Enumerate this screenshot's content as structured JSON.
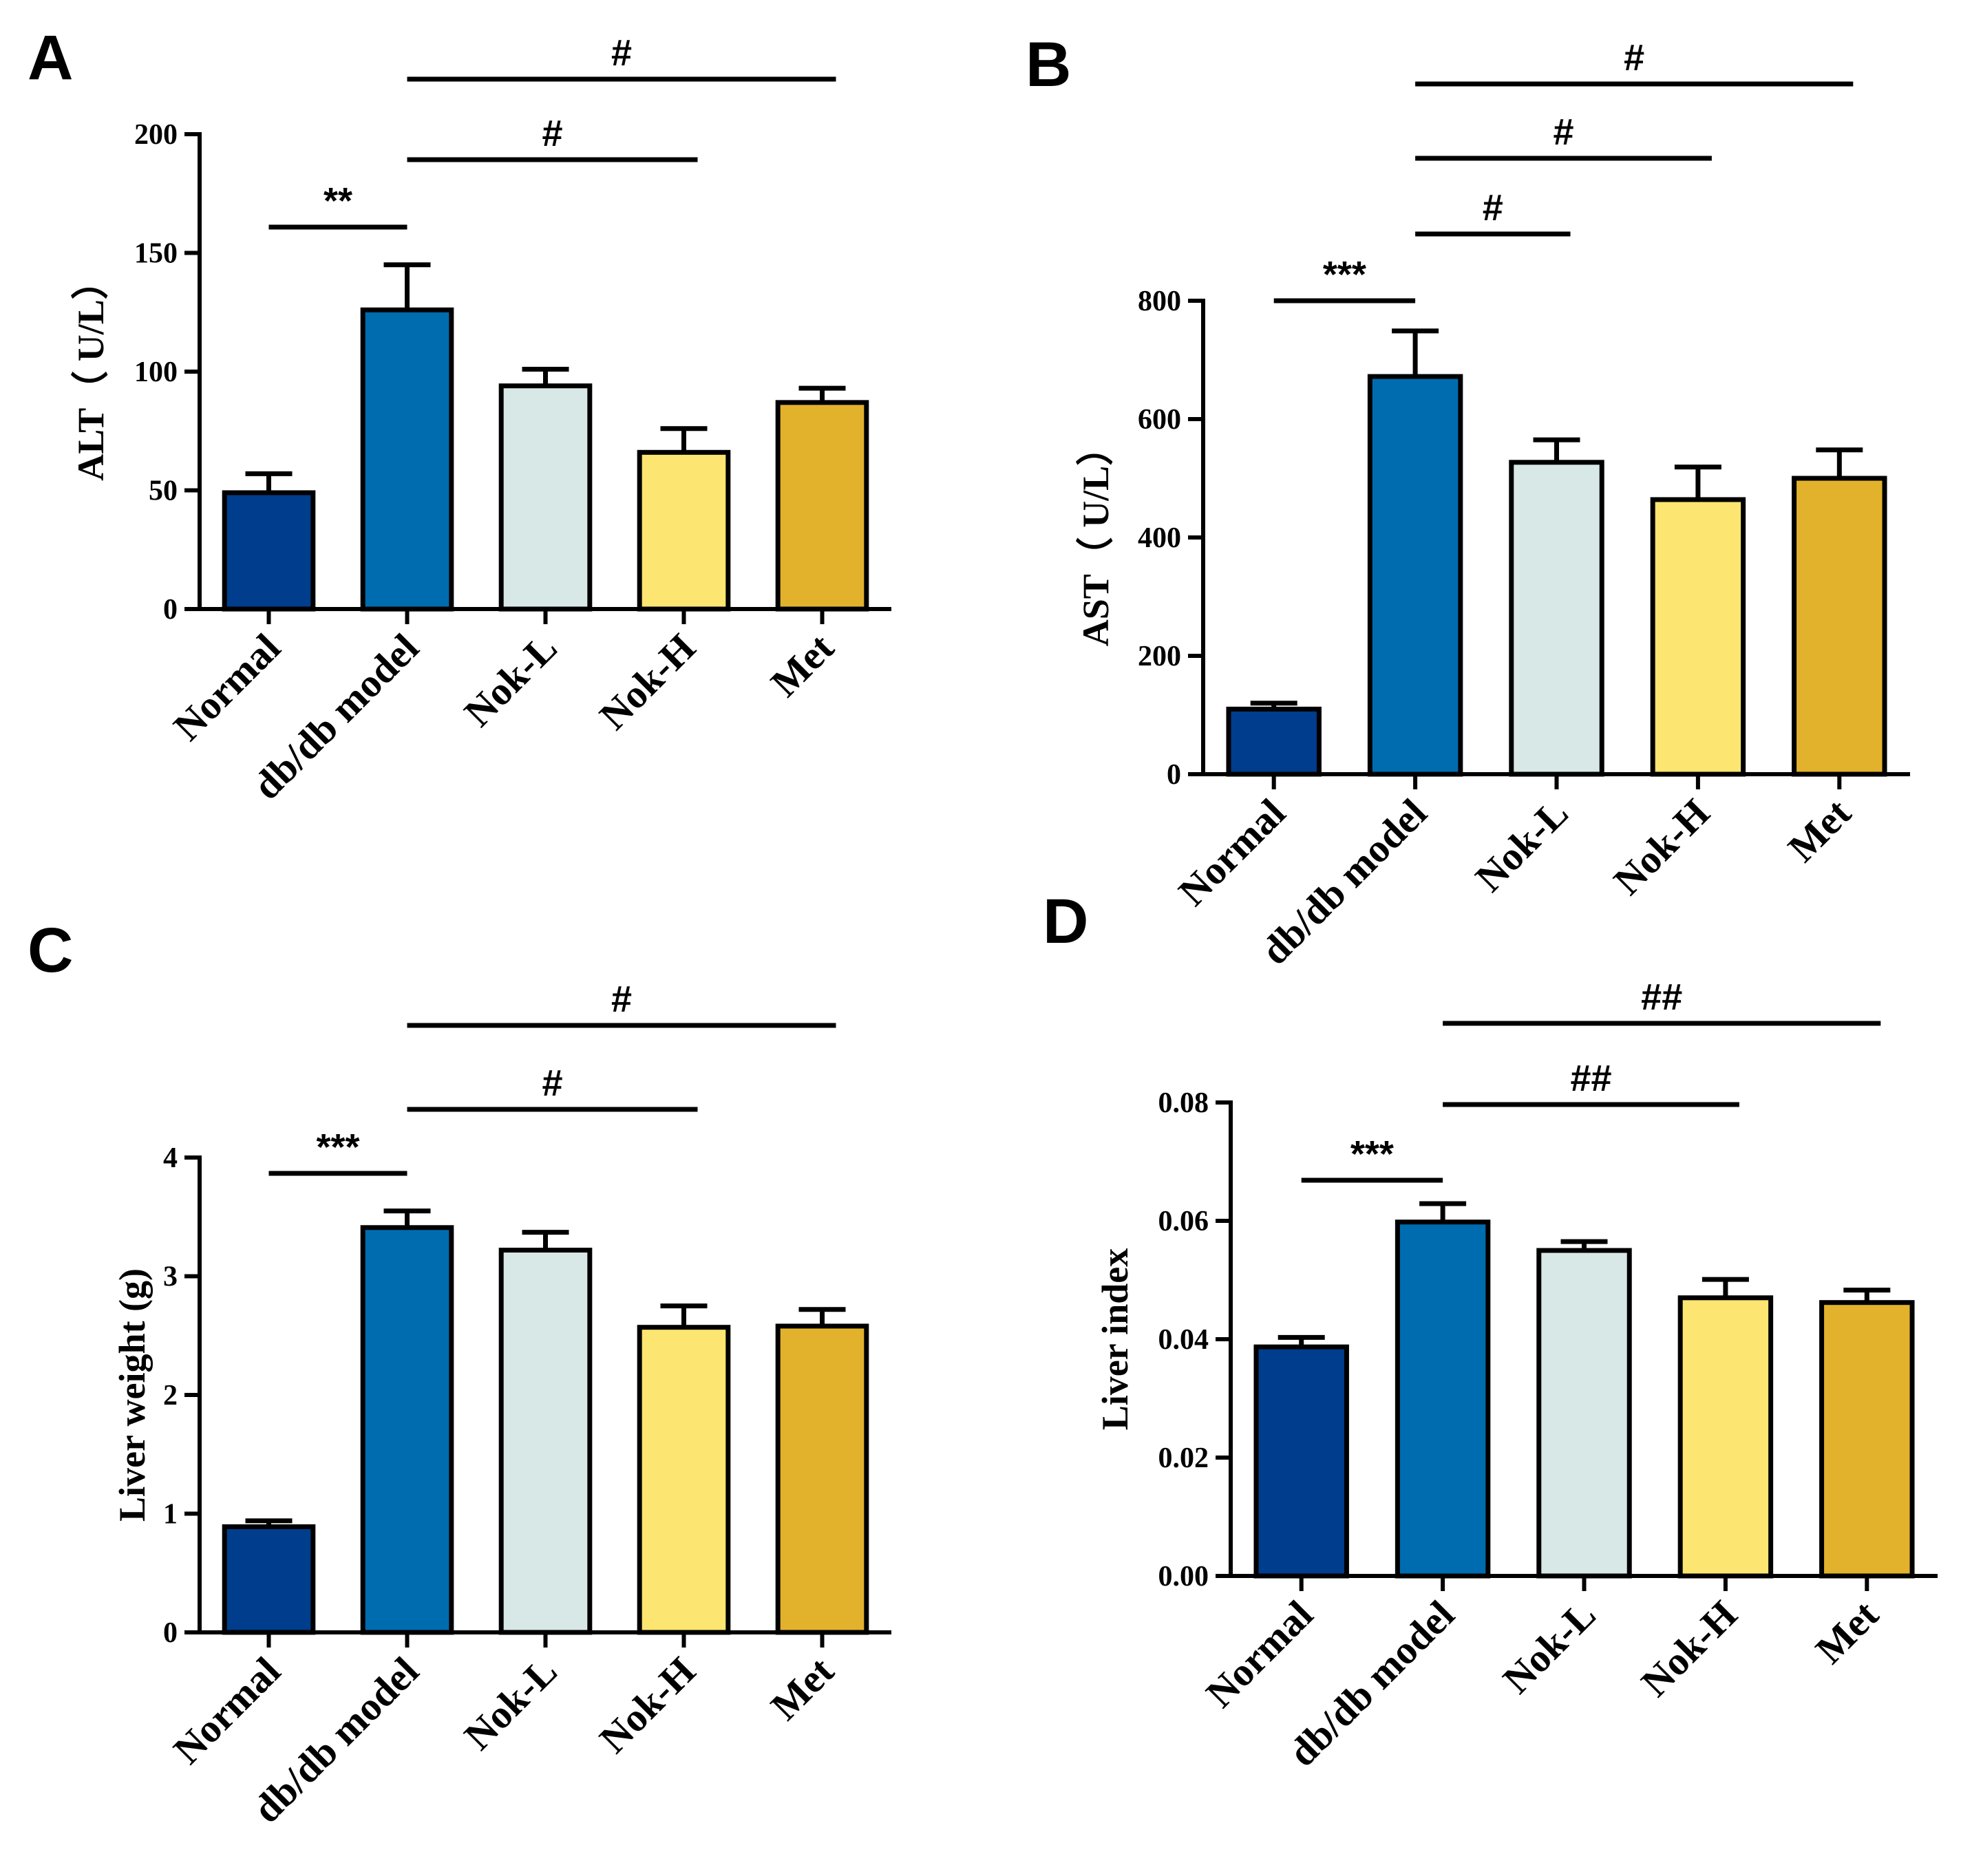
{
  "chart_data": [
    {
      "panel": "A",
      "type": "bar",
      "categories": [
        "Normal",
        "db/db model",
        "Nok-L",
        "Nok-H",
        "Met"
      ],
      "values": [
        49,
        126,
        94,
        66,
        87
      ],
      "errors": [
        8,
        19,
        7,
        10,
        6
      ],
      "colors": [
        "#003d8c",
        "#006cb0",
        "#d8e8e6",
        "#fde572",
        "#e2b22d"
      ],
      "ylabel": "ALT（ U/L）",
      "ylim": [
        0,
        200
      ],
      "yticks": [
        "0",
        "50",
        "100",
        "150",
        "200"
      ],
      "grid": false,
      "significance": [
        {
          "from": 0,
          "to": 1,
          "label": "**"
        },
        {
          "from": 1,
          "to": 3,
          "label": "#"
        },
        {
          "from": 1,
          "to": 4,
          "label": "#"
        }
      ]
    },
    {
      "panel": "B",
      "type": "bar",
      "categories": [
        "Normal",
        "db/db model",
        "Nok-L",
        "Nok-H",
        "Met"
      ],
      "values": [
        110,
        672,
        527,
        464,
        500
      ],
      "errors": [
        10,
        77,
        38,
        55,
        48
      ],
      "colors": [
        "#003d8c",
        "#006cb0",
        "#d8e8e6",
        "#fde572",
        "#e2b22d"
      ],
      "ylabel": "AST（ U/L）",
      "ylim": [
        0,
        800
      ],
      "yticks": [
        "0",
        "200",
        "400",
        "600",
        "800"
      ],
      "grid": false,
      "significance": [
        {
          "from": 0,
          "to": 1,
          "label": "***"
        },
        {
          "from": 1,
          "to": 2,
          "label": "#"
        },
        {
          "from": 1,
          "to": 3,
          "label": "#"
        },
        {
          "from": 1,
          "to": 4,
          "label": "#"
        }
      ]
    },
    {
      "panel": "C",
      "type": "bar",
      "categories": [
        "Normal",
        "db/db model",
        "Nok-L",
        "Nok-H",
        "Met"
      ],
      "values": [
        0.89,
        3.41,
        3.22,
        2.57,
        2.58
      ],
      "errors": [
        0.05,
        0.14,
        0.15,
        0.18,
        0.14
      ],
      "colors": [
        "#003d8c",
        "#006cb0",
        "#d8e8e6",
        "#fde572",
        "#e2b22d"
      ],
      "ylabel": "Liver weight (g)",
      "ylim": [
        0,
        4
      ],
      "yticks": [
        "0",
        "1",
        "2",
        "3",
        "4"
      ],
      "grid": false,
      "significance": [
        {
          "from": 0,
          "to": 1,
          "label": "***"
        },
        {
          "from": 1,
          "to": 3,
          "label": "#"
        },
        {
          "from": 1,
          "to": 4,
          "label": "#"
        }
      ]
    },
    {
      "panel": "D",
      "type": "bar",
      "categories": [
        "Normal",
        "db/db model",
        "Nok-L",
        "Nok-H",
        "Met"
      ],
      "values": [
        0.0387,
        0.0598,
        0.055,
        0.047,
        0.0462
      ],
      "errors": [
        0.0016,
        0.0031,
        0.0015,
        0.0031,
        0.0021
      ],
      "colors": [
        "#003d8c",
        "#006cb0",
        "#d8e8e6",
        "#fde572",
        "#e2b22d"
      ],
      "ylabel": "Liver index",
      "ylim": [
        0,
        0.08
      ],
      "yticks": [
        "0.00",
        "0.02",
        "0.04",
        "0.06",
        "0.08"
      ],
      "grid": false,
      "significance": [
        {
          "from": 0,
          "to": 1,
          "label": "***"
        },
        {
          "from": 1,
          "to": 3,
          "label": "##"
        },
        {
          "from": 1,
          "to": 4,
          "label": "##"
        }
      ]
    }
  ]
}
